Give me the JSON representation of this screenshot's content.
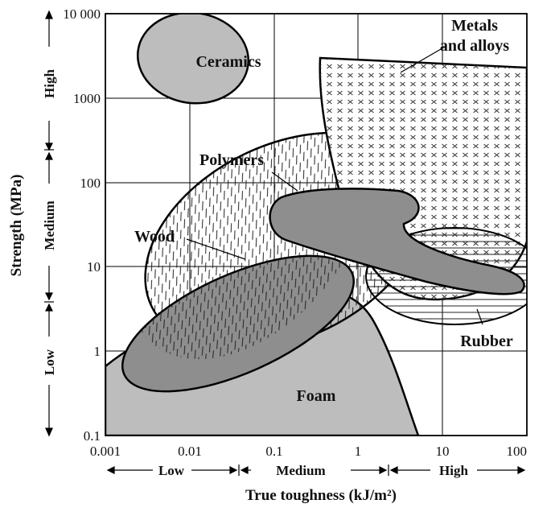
{
  "x_axis": {
    "title": "True toughness (kJ/m²)",
    "ticks": [
      "0.001",
      "0.01",
      "0.1",
      "1",
      "10",
      "100"
    ],
    "bands": [
      "Low",
      "Medium",
      "High"
    ]
  },
  "y_axis": {
    "title": "Strength (MPa)",
    "ticks": [
      "0.1",
      "1",
      "10",
      "100",
      "1000",
      "10 000"
    ],
    "bands": [
      "Low",
      "Medium",
      "High"
    ]
  },
  "regions": {
    "ceramics": "Ceramics",
    "metals_line1": "Metals",
    "metals_line2": "and alloys",
    "polymers": "Polymers",
    "wood": "Wood",
    "rubber": "Rubber",
    "foam": "Foam"
  },
  "colors": {
    "light_gray": "#bdbdbd",
    "dark_gray": "#8e8e8e",
    "outline": "#000000"
  }
}
